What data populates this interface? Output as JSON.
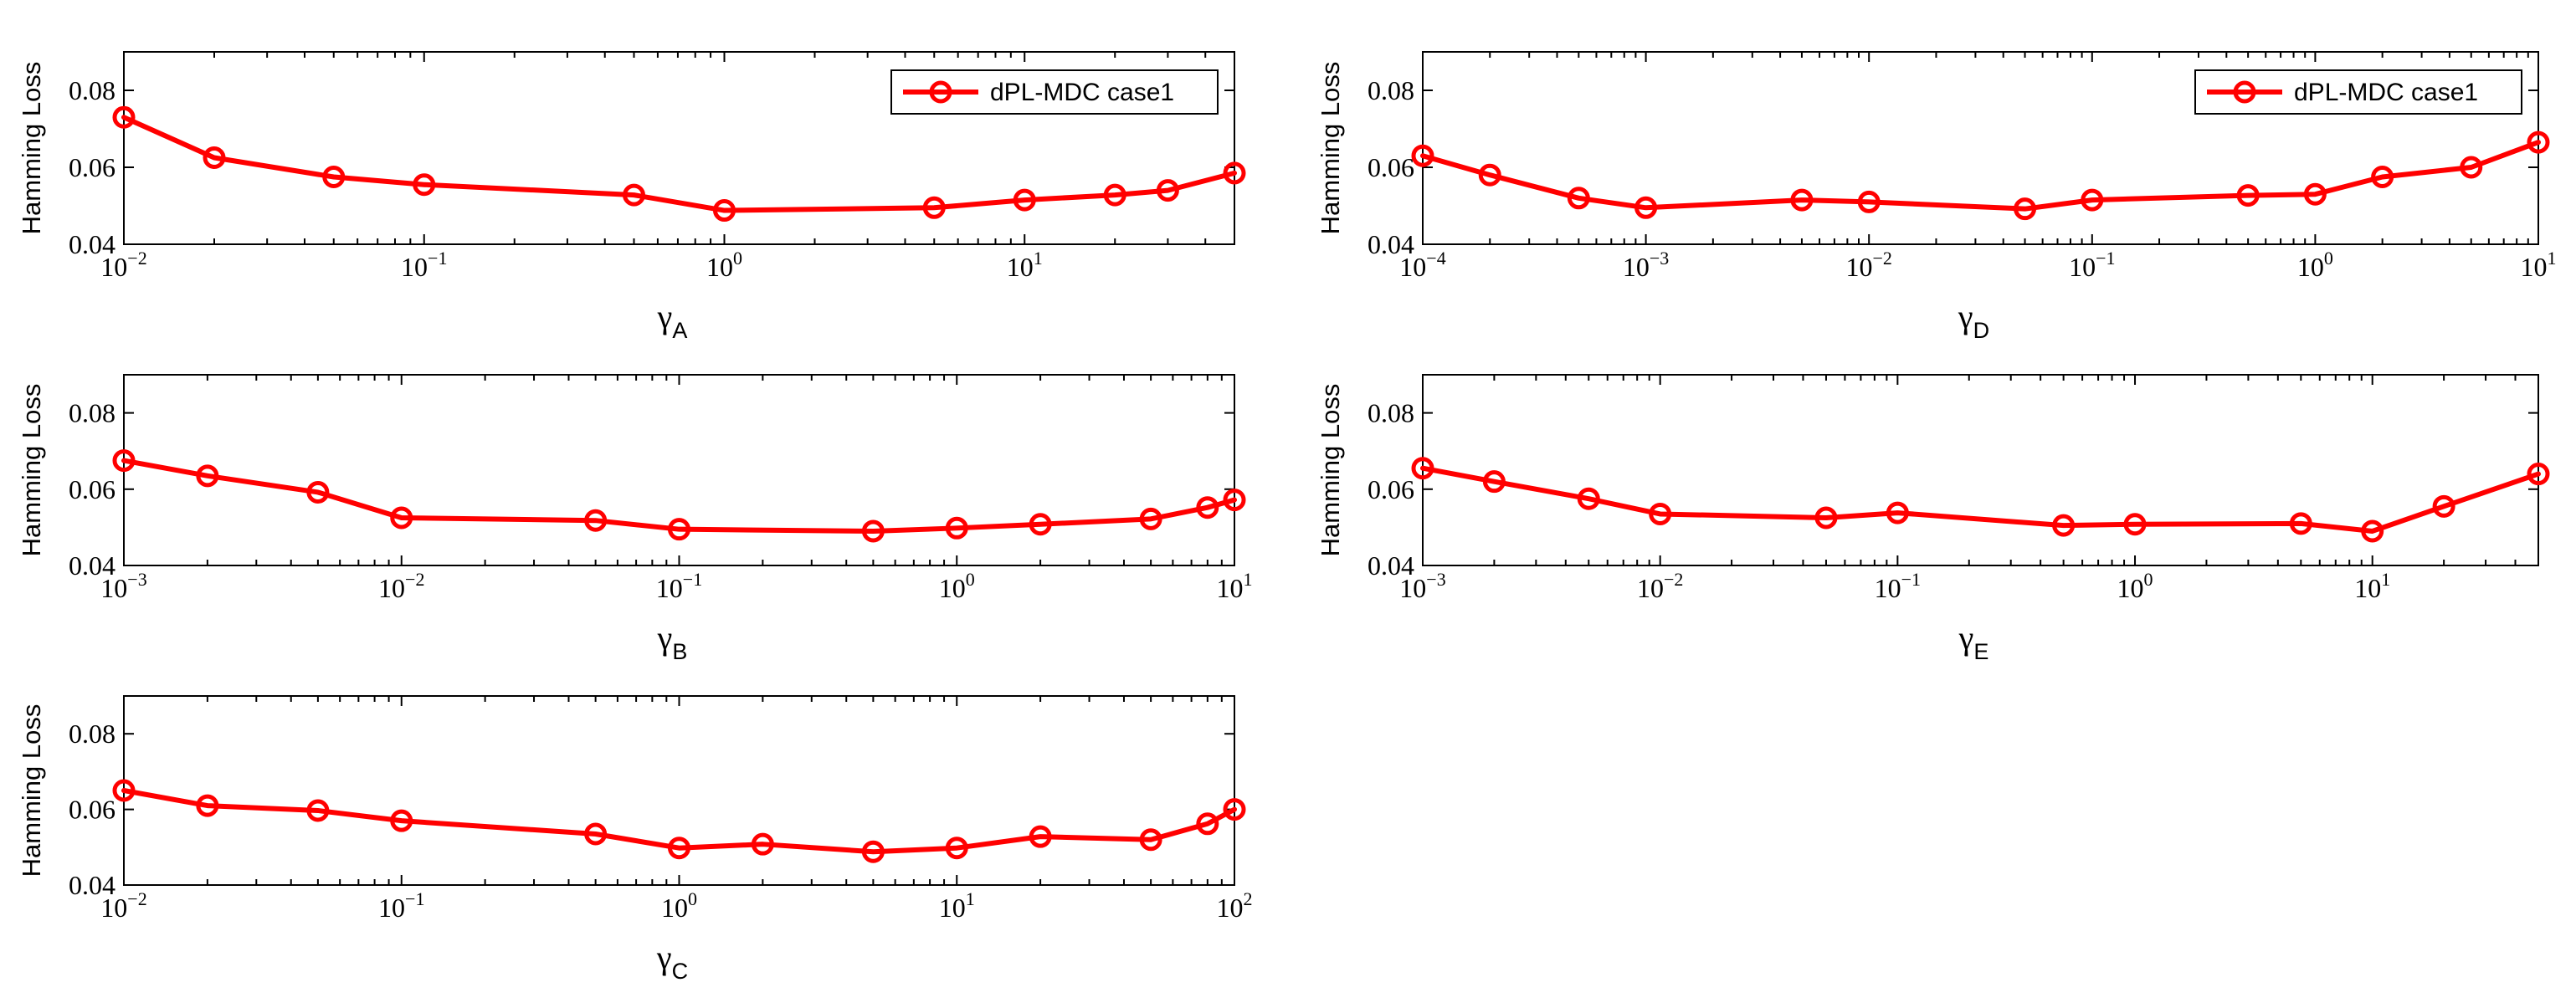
{
  "colors": {
    "series": "#ff0000",
    "axis": "#000000",
    "background": "#ffffff"
  },
  "chart_data": [
    {
      "id": "A",
      "type": "line",
      "xscale": "log",
      "xlim": [
        0.01,
        50
      ],
      "ylim": [
        0.04,
        0.09
      ],
      "ylabel": "Hamming Loss",
      "xlabel": {
        "symbol": "γ",
        "subscript": "A"
      },
      "xticks": [
        {
          "base": "10",
          "exp": "−2",
          "value": 0.01
        },
        {
          "base": "10",
          "exp": "−1",
          "value": 0.1
        },
        {
          "base": "10",
          "exp": "0",
          "value": 1
        },
        {
          "base": "10",
          "exp": "1",
          "value": 10
        }
      ],
      "yticks": [
        "0.04",
        "0.06",
        "0.08"
      ],
      "legend": {
        "label": "dPL-MDC case1",
        "position": "top-right"
      },
      "series": [
        {
          "name": "dPL-MDC case1",
          "x": [
            0.01,
            0.02,
            0.05,
            0.1,
            0.5,
            1,
            5,
            10,
            20,
            30,
            50
          ],
          "y": [
            0.073,
            0.0625,
            0.0575,
            0.0555,
            0.0528,
            0.0488,
            0.0495,
            0.0515,
            0.0528,
            0.054,
            0.0585
          ]
        }
      ]
    },
    {
      "id": "D",
      "type": "line",
      "xscale": "log",
      "xlim": [
        0.0001,
        10
      ],
      "ylim": [
        0.04,
        0.09
      ],
      "ylabel": "Hamming Loss",
      "xlabel": {
        "symbol": "γ",
        "subscript": "D"
      },
      "xticks": [
        {
          "base": "10",
          "exp": "−4",
          "value": 0.0001
        },
        {
          "base": "10",
          "exp": "−3",
          "value": 0.001
        },
        {
          "base": "10",
          "exp": "−2",
          "value": 0.01
        },
        {
          "base": "10",
          "exp": "−1",
          "value": 0.1
        },
        {
          "base": "10",
          "exp": "0",
          "value": 1
        },
        {
          "base": "10",
          "exp": "1",
          "value": 10
        }
      ],
      "yticks": [
        "0.04",
        "0.06",
        "0.08"
      ],
      "legend": {
        "label": "dPL-MDC case1",
        "position": "top-right"
      },
      "series": [
        {
          "name": "dPL-MDC case1",
          "x": [
            0.0001,
            0.0002,
            0.0005,
            0.001,
            0.005,
            0.01,
            0.05,
            0.1,
            0.5,
            1,
            2,
            5,
            10
          ],
          "y": [
            0.063,
            0.058,
            0.052,
            0.0495,
            0.0515,
            0.051,
            0.0492,
            0.0515,
            0.0527,
            0.053,
            0.0575,
            0.06,
            0.0665
          ]
        }
      ]
    },
    {
      "id": "B",
      "type": "line",
      "xscale": "log",
      "xlim": [
        0.001,
        10
      ],
      "ylim": [
        0.04,
        0.09
      ],
      "ylabel": "Hamming Loss",
      "xlabel": {
        "symbol": "γ",
        "subscript": "B"
      },
      "xticks": [
        {
          "base": "10",
          "exp": "−3",
          "value": 0.001
        },
        {
          "base": "10",
          "exp": "−2",
          "value": 0.01
        },
        {
          "base": "10",
          "exp": "−1",
          "value": 0.1
        },
        {
          "base": "10",
          "exp": "0",
          "value": 1
        },
        {
          "base": "10",
          "exp": "1",
          "value": 10
        }
      ],
      "yticks": [
        "0.04",
        "0.06",
        "0.08"
      ],
      "legend": null,
      "series": [
        {
          "name": "dPL-MDC case1",
          "x": [
            0.001,
            0.002,
            0.005,
            0.01,
            0.05,
            0.1,
            0.5,
            1,
            2,
            5,
            8,
            10
          ],
          "y": [
            0.0675,
            0.0635,
            0.0592,
            0.0525,
            0.0518,
            0.0495,
            0.049,
            0.0498,
            0.0508,
            0.0522,
            0.0552,
            0.0572
          ]
        }
      ]
    },
    {
      "id": "E",
      "type": "line",
      "xscale": "log",
      "xlim": [
        0.001,
        50
      ],
      "ylim": [
        0.04,
        0.09
      ],
      "ylabel": "Hamming Loss",
      "xlabel": {
        "symbol": "γ",
        "subscript": "E"
      },
      "xticks": [
        {
          "base": "10",
          "exp": "−3",
          "value": 0.001
        },
        {
          "base": "10",
          "exp": "−2",
          "value": 0.01
        },
        {
          "base": "10",
          "exp": "−1",
          "value": 0.1
        },
        {
          "base": "10",
          "exp": "0",
          "value": 1
        },
        {
          "base": "10",
          "exp": "1",
          "value": 10
        }
      ],
      "yticks": [
        "0.04",
        "0.06",
        "0.08"
      ],
      "legend": null,
      "series": [
        {
          "name": "dPL-MDC case1",
          "x": [
            0.001,
            0.002,
            0.005,
            0.01,
            0.05,
            0.1,
            0.5,
            1,
            5,
            10,
            20,
            50
          ],
          "y": [
            0.0655,
            0.062,
            0.0575,
            0.0535,
            0.0525,
            0.0538,
            0.0505,
            0.0508,
            0.051,
            0.049,
            0.0555,
            0.064
          ]
        }
      ]
    },
    {
      "id": "C",
      "type": "line",
      "xscale": "log",
      "xlim": [
        0.01,
        100
      ],
      "ylim": [
        0.04,
        0.09
      ],
      "ylabel": "Hamming Loss",
      "xlabel": {
        "symbol": "γ",
        "subscript": "C"
      },
      "xticks": [
        {
          "base": "10",
          "exp": "−2",
          "value": 0.01
        },
        {
          "base": "10",
          "exp": "−1",
          "value": 0.1
        },
        {
          "base": "10",
          "exp": "0",
          "value": 1
        },
        {
          "base": "10",
          "exp": "1",
          "value": 10
        },
        {
          "base": "10",
          "exp": "2",
          "value": 100
        }
      ],
      "yticks": [
        "0.04",
        "0.06",
        "0.08"
      ],
      "legend": null,
      "series": [
        {
          "name": "dPL-MDC case1",
          "x": [
            0.01,
            0.02,
            0.05,
            0.1,
            0.5,
            1,
            2,
            5,
            10,
            20,
            50,
            80,
            100
          ],
          "y": [
            0.065,
            0.061,
            0.0597,
            0.057,
            0.0535,
            0.0498,
            0.0508,
            0.0488,
            0.0498,
            0.0528,
            0.052,
            0.0562,
            0.06
          ]
        }
      ]
    }
  ]
}
